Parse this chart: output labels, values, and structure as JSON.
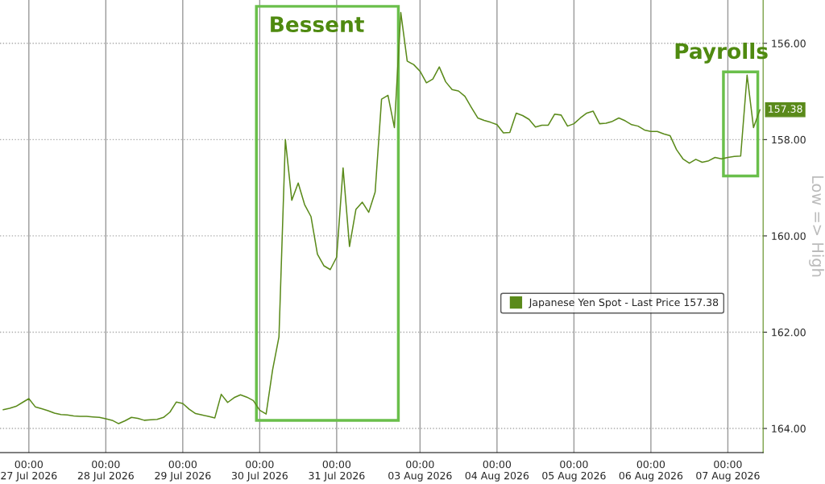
{
  "chart_data": {
    "type": "line",
    "ylabel": "Low => High",
    "annotations": [
      "Bessent",
      "Payrolls"
    ],
    "categories": [
      null,
      null,
      null,
      null,
      "00:00\n27 Jul 2026",
      null,
      null,
      null,
      null,
      null,
      null,
      null,
      null,
      null,
      null,
      null,
      "00:00\n28 Jul 2026",
      null,
      null,
      null,
      null,
      null,
      null,
      null,
      null,
      null,
      null,
      null,
      "00:00\n29 Jul 2026",
      null,
      null,
      null,
      null,
      null,
      null,
      null,
      null,
      null,
      null,
      null,
      "00:00\n30 Jul 2026",
      null,
      null,
      null,
      null,
      null,
      null,
      null,
      null,
      null,
      null,
      null,
      "00:00\n31 Jul 2026",
      null,
      null,
      null,
      null,
      null,
      null,
      null,
      null,
      null,
      null,
      null,
      null,
      "00:00\n03 Aug 2026",
      null,
      null,
      null,
      null,
      null,
      null,
      null,
      null,
      null,
      null,
      null,
      "00:00\n04 Aug 2026",
      null,
      null,
      null,
      null,
      null,
      null,
      null,
      null,
      null,
      null,
      null,
      "00:00\n05 Aug 2026",
      null,
      null,
      null,
      null,
      null,
      null,
      null,
      null,
      null,
      null,
      null,
      "00:00\n06 Aug 2026",
      null,
      null,
      null,
      null,
      null,
      null,
      null,
      null,
      null,
      null,
      null,
      "00:00\n07 Aug 2026",
      null,
      null,
      null,
      null,
      null
    ],
    "series": [
      {
        "name": "Japanese Yen Spot - Last Price 157.38",
        "color": "#5a8a1a",
        "values": [
          163.61,
          163.58,
          163.54,
          163.46,
          163.38,
          163.55,
          163.59,
          163.63,
          163.68,
          163.71,
          163.72,
          163.74,
          163.75,
          163.75,
          163.76,
          163.77,
          163.8,
          163.83,
          163.9,
          163.84,
          163.77,
          163.79,
          163.83,
          163.82,
          163.81,
          163.77,
          163.66,
          163.45,
          163.48,
          163.6,
          163.69,
          163.72,
          163.75,
          163.78,
          163.29,
          163.46,
          163.36,
          163.3,
          163.35,
          163.42,
          163.62,
          163.7,
          162.79,
          162.1,
          158.0,
          159.26,
          158.9,
          159.35,
          159.6,
          160.38,
          160.62,
          160.7,
          160.44,
          158.59,
          160.22,
          159.45,
          159.3,
          159.51,
          159.09,
          157.16,
          157.08,
          157.75,
          155.36,
          156.37,
          156.44,
          156.58,
          156.82,
          156.74,
          156.49,
          156.8,
          156.96,
          156.99,
          157.1,
          157.33,
          157.55,
          157.6,
          157.64,
          157.69,
          157.86,
          157.85,
          157.45,
          157.5,
          157.58,
          157.74,
          157.7,
          157.7,
          157.47,
          157.49,
          157.72,
          157.67,
          157.55,
          157.45,
          157.41,
          157.67,
          157.66,
          157.62,
          157.55,
          157.61,
          157.69,
          157.72,
          157.8,
          157.83,
          157.83,
          157.88,
          157.92,
          158.21,
          158.4,
          158.49,
          158.41,
          158.47,
          158.44,
          158.37,
          158.4,
          158.37,
          158.35,
          158.34,
          156.66,
          157.75,
          157.38
        ],
        "value_labels": [
          null,
          null,
          null,
          null,
          null,
          null,
          null,
          null,
          null,
          null,
          null,
          null,
          null,
          null,
          null,
          null,
          null,
          null,
          null,
          null,
          null,
          null,
          null,
          null,
          null,
          null,
          null,
          null,
          null,
          null,
          null,
          null,
          null,
          null,
          null,
          null,
          null,
          null,
          null,
          null,
          null,
          null,
          null,
          null,
          null,
          null,
          null,
          null,
          null,
          null,
          null,
          null,
          null,
          null,
          null,
          null,
          null,
          null,
          null,
          null,
          null,
          null,
          null,
          null,
          null,
          null,
          null,
          null,
          null,
          null,
          null,
          null,
          null,
          null,
          null,
          null,
          null,
          null,
          null,
          null,
          null,
          null,
          null,
          null,
          null,
          null,
          null,
          null,
          null,
          null,
          null,
          null,
          null,
          null,
          null,
          null,
          null,
          null,
          null,
          null,
          null,
          null,
          null,
          null,
          null,
          null,
          null,
          null,
          null,
          null,
          null,
          null,
          null,
          null,
          null,
          null,
          null,
          null,
          "157.38"
        ]
      }
    ],
    "ylim": [
      164.5,
      155.1
    ],
    "yticks": [
      {
        "value": 156,
        "label": "156.00"
      },
      {
        "value": 158,
        "label": "158.00"
      },
      {
        "value": 160,
        "label": "160.00"
      },
      {
        "value": 162,
        "label": "162.00"
      },
      {
        "value": 164,
        "label": "164.00"
      }
    ],
    "grid": true,
    "legend": "center right",
    "marker": "none",
    "line_style": "solid"
  }
}
